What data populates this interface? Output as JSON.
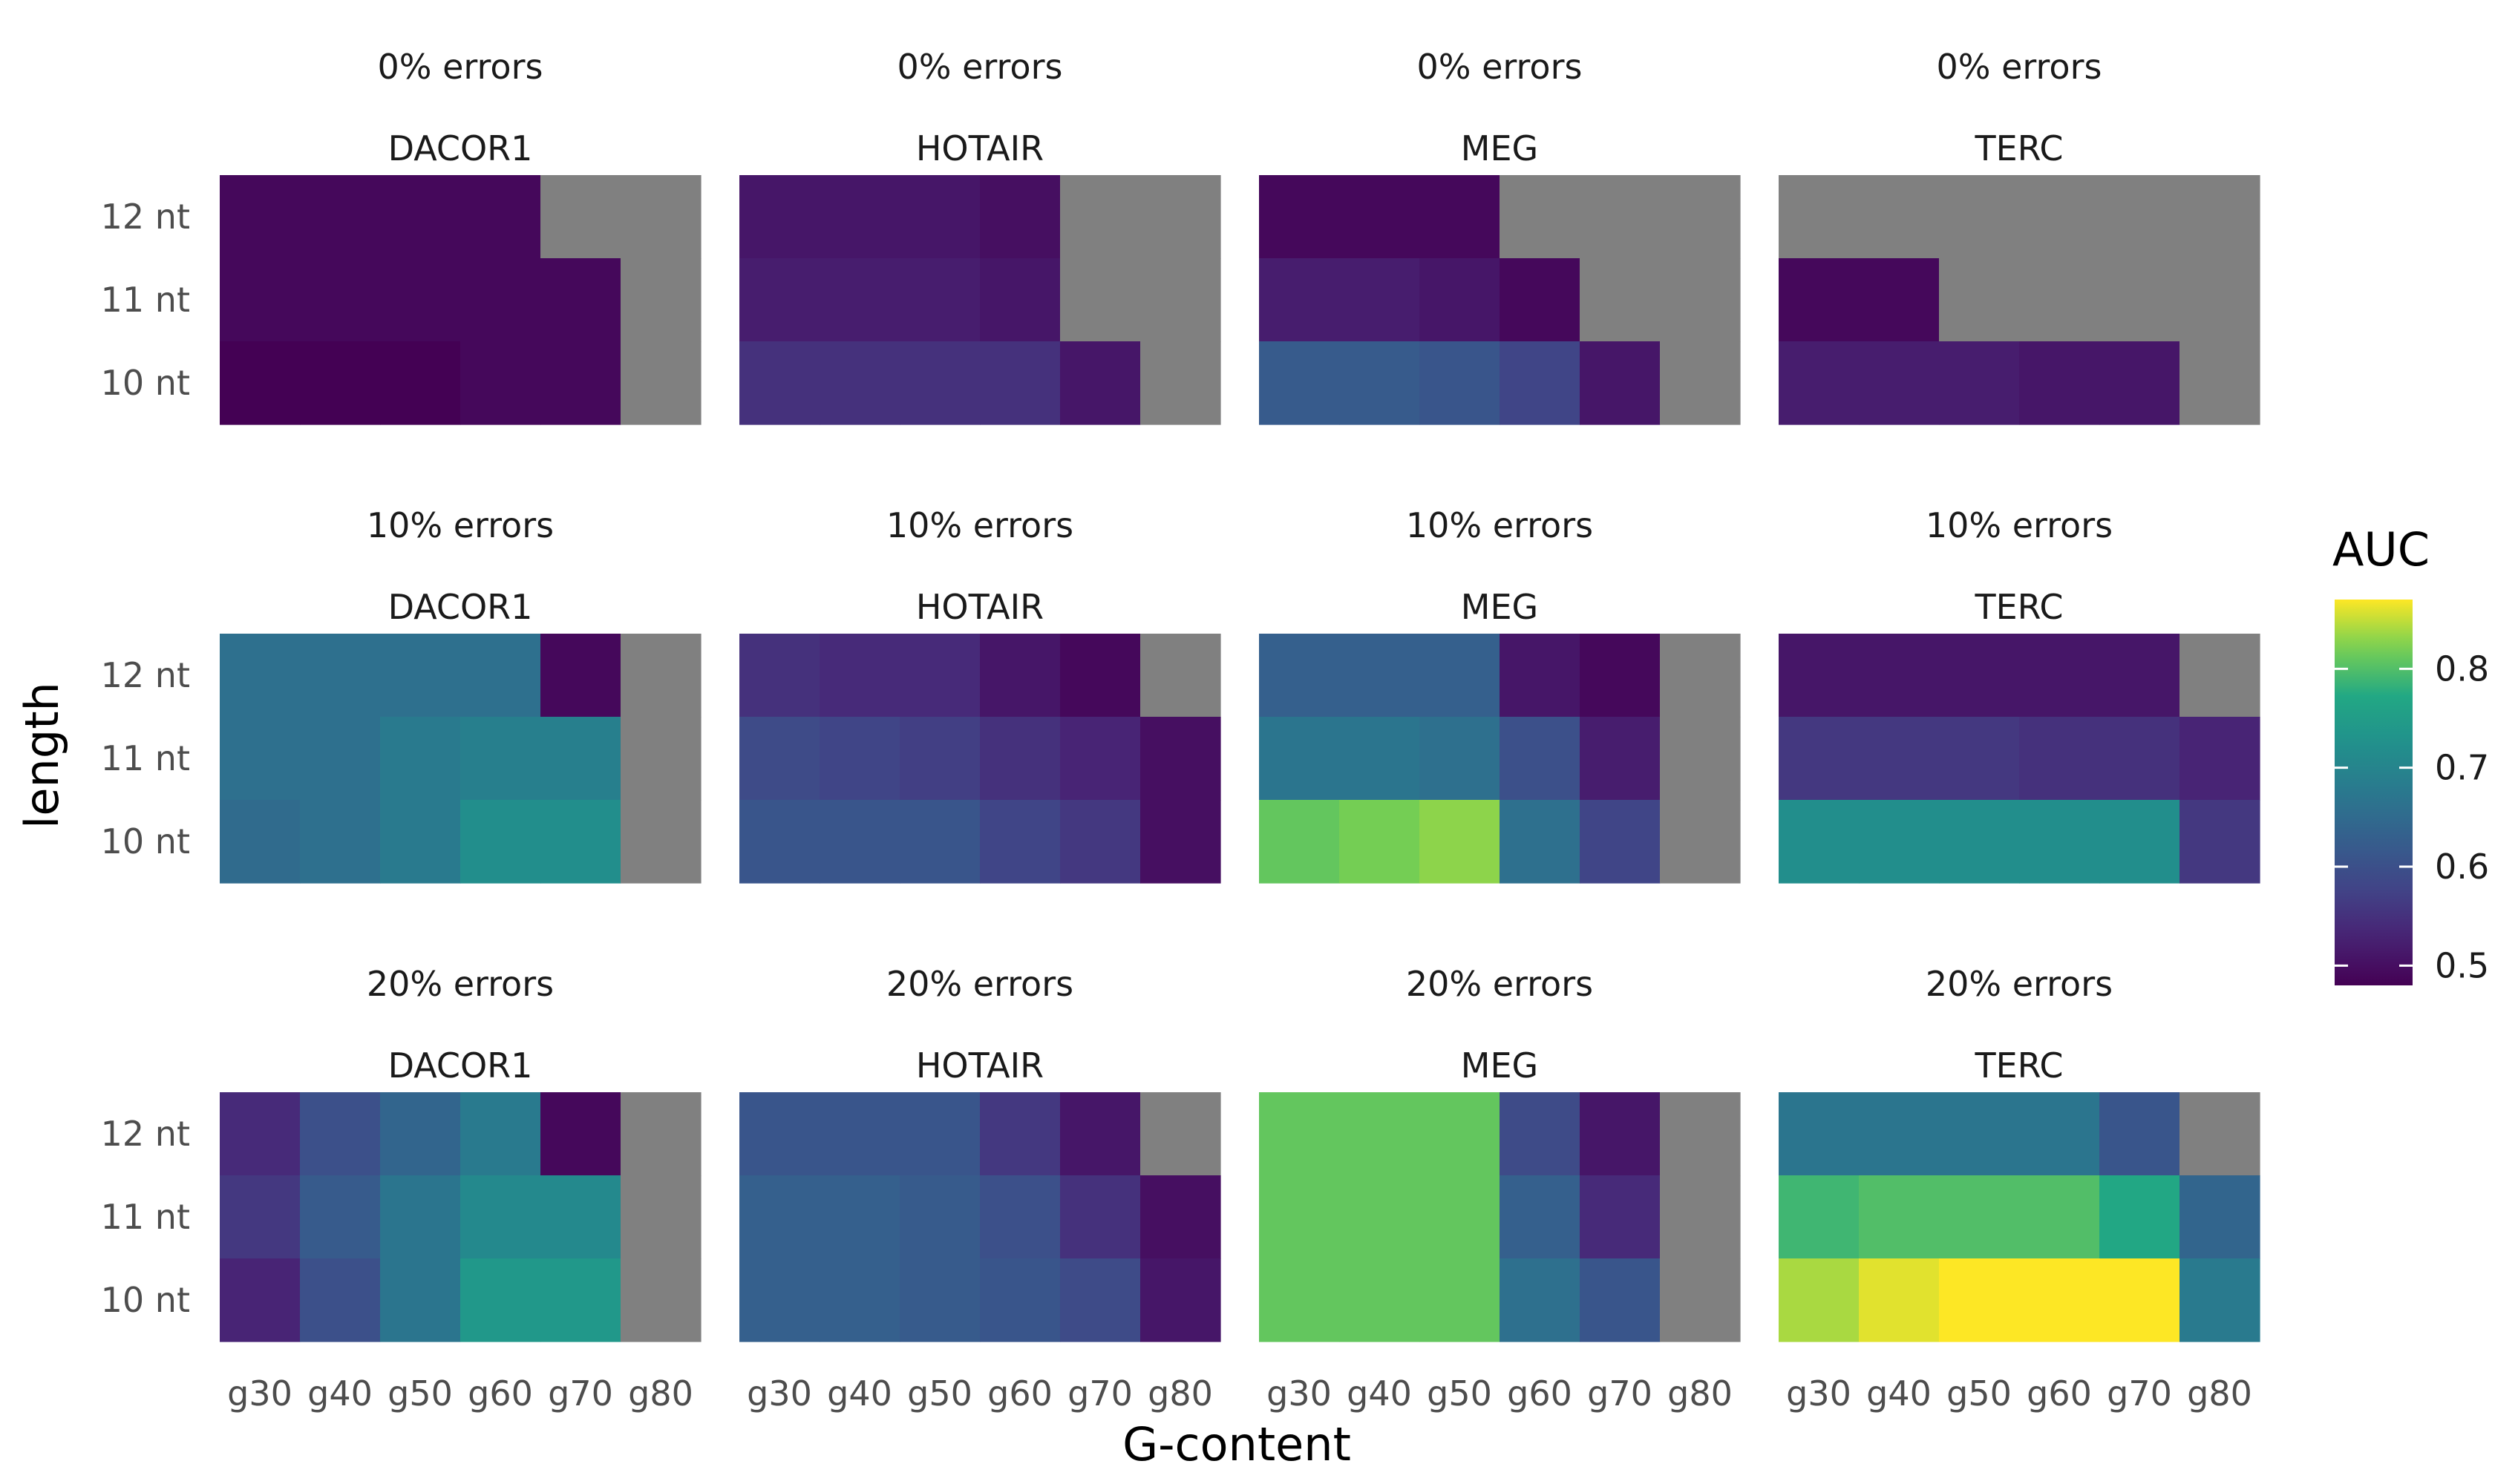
{
  "chart_data": {
    "type": "heatmap",
    "x_axis_label": "G-content",
    "y_axis_label": "length",
    "x_categories": [
      "g30",
      "g40",
      "g50",
      "g60",
      "g70",
      "g80"
    ],
    "y_categories": [
      "10  nt",
      "11  nt",
      "12  nt"
    ],
    "missing_color": "#808080",
    "legend": {
      "title": "AUC",
      "ticks": [
        0.5,
        0.6,
        0.7,
        0.8
      ],
      "tick_labels": [
        "0.5",
        "0.6",
        "0.7",
        "0.8"
      ],
      "range": [
        0.48,
        0.87
      ]
    },
    "panels": [
      {
        "row": 0,
        "col": 0,
        "error_label": "0%  errors",
        "gene": "DACOR1",
        "values": {
          "12": [
            0.49,
            0.49,
            0.49,
            0.49,
            null,
            null
          ],
          "11": [
            0.49,
            0.49,
            0.49,
            0.49,
            0.49,
            null
          ],
          "10": [
            0.48,
            0.48,
            0.48,
            0.49,
            0.49,
            null
          ]
        }
      },
      {
        "row": 0,
        "col": 1,
        "error_label": "0%  errors",
        "gene": "HOTAIR",
        "values": {
          "12": [
            0.51,
            0.51,
            0.51,
            0.5,
            null,
            null
          ],
          "11": [
            0.52,
            0.52,
            0.52,
            0.51,
            null,
            null
          ],
          "10": [
            0.55,
            0.55,
            0.55,
            0.55,
            0.51,
            null
          ]
        }
      },
      {
        "row": 0,
        "col": 2,
        "error_label": "0%  errors",
        "gene": "MEG",
        "values": {
          "12": [
            0.49,
            0.49,
            0.49,
            null,
            null,
            null
          ],
          "11": [
            0.52,
            0.52,
            0.51,
            0.49,
            null,
            null
          ],
          "10": [
            0.62,
            0.62,
            0.61,
            0.58,
            0.51,
            null
          ]
        }
      },
      {
        "row": 0,
        "col": 3,
        "error_label": "0%  errors",
        "gene": "TERC",
        "values": {
          "12": [
            null,
            null,
            null,
            null,
            null,
            null
          ],
          "11": [
            0.49,
            0.49,
            null,
            null,
            null,
            null
          ],
          "10": [
            0.52,
            0.52,
            0.52,
            0.51,
            0.51,
            null
          ]
        }
      },
      {
        "row": 1,
        "col": 0,
        "error_label": "10%  errors",
        "gene": "DACOR1",
        "values": {
          "12": [
            0.66,
            0.66,
            0.66,
            0.66,
            0.49,
            null
          ],
          "11": [
            0.66,
            0.66,
            0.68,
            0.69,
            0.69,
            null
          ],
          "10": [
            0.65,
            0.66,
            0.68,
            0.72,
            0.72,
            null
          ]
        }
      },
      {
        "row": 1,
        "col": 1,
        "error_label": "10%  errors",
        "gene": "HOTAIR",
        "values": {
          "12": [
            0.55,
            0.54,
            0.54,
            0.51,
            0.49,
            null
          ],
          "11": [
            0.59,
            0.58,
            0.57,
            0.55,
            0.53,
            0.5
          ],
          "10": [
            0.61,
            0.61,
            0.61,
            0.58,
            0.56,
            0.5
          ]
        }
      },
      {
        "row": 1,
        "col": 2,
        "error_label": "10%  errors",
        "gene": "MEG",
        "values": {
          "12": [
            0.63,
            0.63,
            0.63,
            0.51,
            0.49,
            null
          ],
          "11": [
            0.67,
            0.67,
            0.66,
            0.6,
            0.52,
            null
          ],
          "10": [
            0.81,
            0.82,
            0.83,
            0.66,
            0.58,
            null
          ]
        }
      },
      {
        "row": 1,
        "col": 3,
        "error_label": "10%  errors",
        "gene": "TERC",
        "values": {
          "12": [
            0.51,
            0.51,
            0.51,
            0.51,
            0.51,
            null
          ],
          "11": [
            0.56,
            0.56,
            0.56,
            0.55,
            0.55,
            0.53
          ],
          "10": [
            0.72,
            0.72,
            0.72,
            0.72,
            0.72,
            0.56
          ]
        }
      },
      {
        "row": 2,
        "col": 0,
        "error_label": "20%  errors",
        "gene": "DACOR1",
        "values": {
          "12": [
            0.54,
            0.6,
            0.64,
            0.68,
            0.49,
            null
          ],
          "11": [
            0.56,
            0.62,
            0.67,
            0.71,
            0.71,
            null
          ],
          "10": [
            0.53,
            0.6,
            0.67,
            0.74,
            0.74,
            null
          ]
        }
      },
      {
        "row": 2,
        "col": 1,
        "error_label": "20%  errors",
        "gene": "HOTAIR",
        "values": {
          "12": [
            0.61,
            0.61,
            0.61,
            0.56,
            0.51,
            null
          ],
          "11": [
            0.63,
            0.63,
            0.62,
            0.6,
            0.55,
            0.5
          ],
          "10": [
            0.63,
            0.63,
            0.62,
            0.61,
            0.59,
            0.51
          ]
        }
      },
      {
        "row": 2,
        "col": 2,
        "error_label": "20%  errors",
        "gene": "MEG",
        "values": {
          "12": [
            0.81,
            0.81,
            0.81,
            0.59,
            0.51,
            null
          ],
          "11": [
            0.81,
            0.81,
            0.81,
            0.63,
            0.54,
            null
          ],
          "10": [
            0.81,
            0.81,
            0.81,
            0.66,
            0.61,
            null
          ]
        }
      },
      {
        "row": 2,
        "col": 3,
        "error_label": "20%  errors",
        "gene": "TERC",
        "values": {
          "12": [
            0.67,
            0.67,
            0.67,
            0.67,
            0.61,
            null
          ],
          "11": [
            0.79,
            0.8,
            0.8,
            0.8,
            0.77,
            0.64
          ],
          "10": [
            0.84,
            0.86,
            0.87,
            0.87,
            0.87,
            0.68
          ]
        }
      }
    ]
  }
}
